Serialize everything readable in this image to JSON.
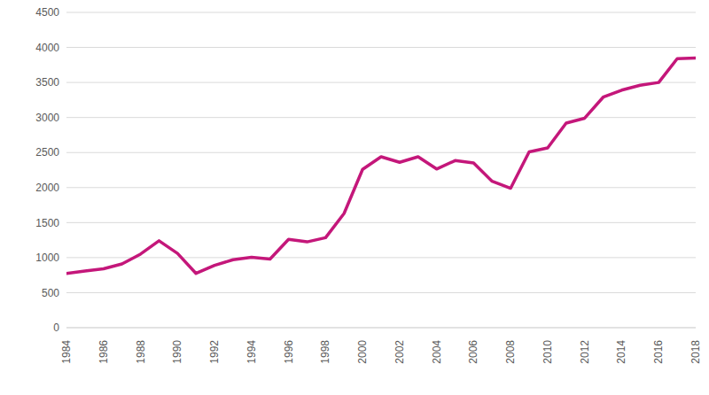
{
  "chart_data": {
    "type": "line",
    "x": [
      1984,
      1985,
      1986,
      1987,
      1988,
      1989,
      1990,
      1991,
      1992,
      1993,
      1994,
      1995,
      1996,
      1997,
      1998,
      1999,
      2000,
      2001,
      2002,
      2003,
      2004,
      2005,
      2006,
      2007,
      2008,
      2009,
      2010,
      2011,
      2012,
      2013,
      2014,
      2015,
      2016,
      2017,
      2018
    ],
    "values": [
      775,
      810,
      840,
      910,
      1050,
      1240,
      1060,
      775,
      890,
      970,
      1005,
      980,
      1260,
      1225,
      1285,
      1630,
      2260,
      2440,
      2360,
      2440,
      2265,
      2385,
      2350,
      2090,
      1990,
      2510,
      2565,
      2920,
      2990,
      3290,
      3390,
      3460,
      3500,
      3840,
      3850
    ],
    "color": "#c4177a",
    "xlim": [
      1984,
      2018
    ],
    "xticks": [
      1984,
      1986,
      1988,
      1990,
      1992,
      1994,
      1996,
      1998,
      2000,
      2002,
      2004,
      2006,
      2008,
      2010,
      2012,
      2014,
      2016,
      2018
    ],
    "ylim": [
      0,
      4500
    ],
    "yticks": [
      0,
      500,
      1000,
      1500,
      2000,
      2500,
      3000,
      3500,
      4000,
      4500
    ],
    "grid": true
  }
}
